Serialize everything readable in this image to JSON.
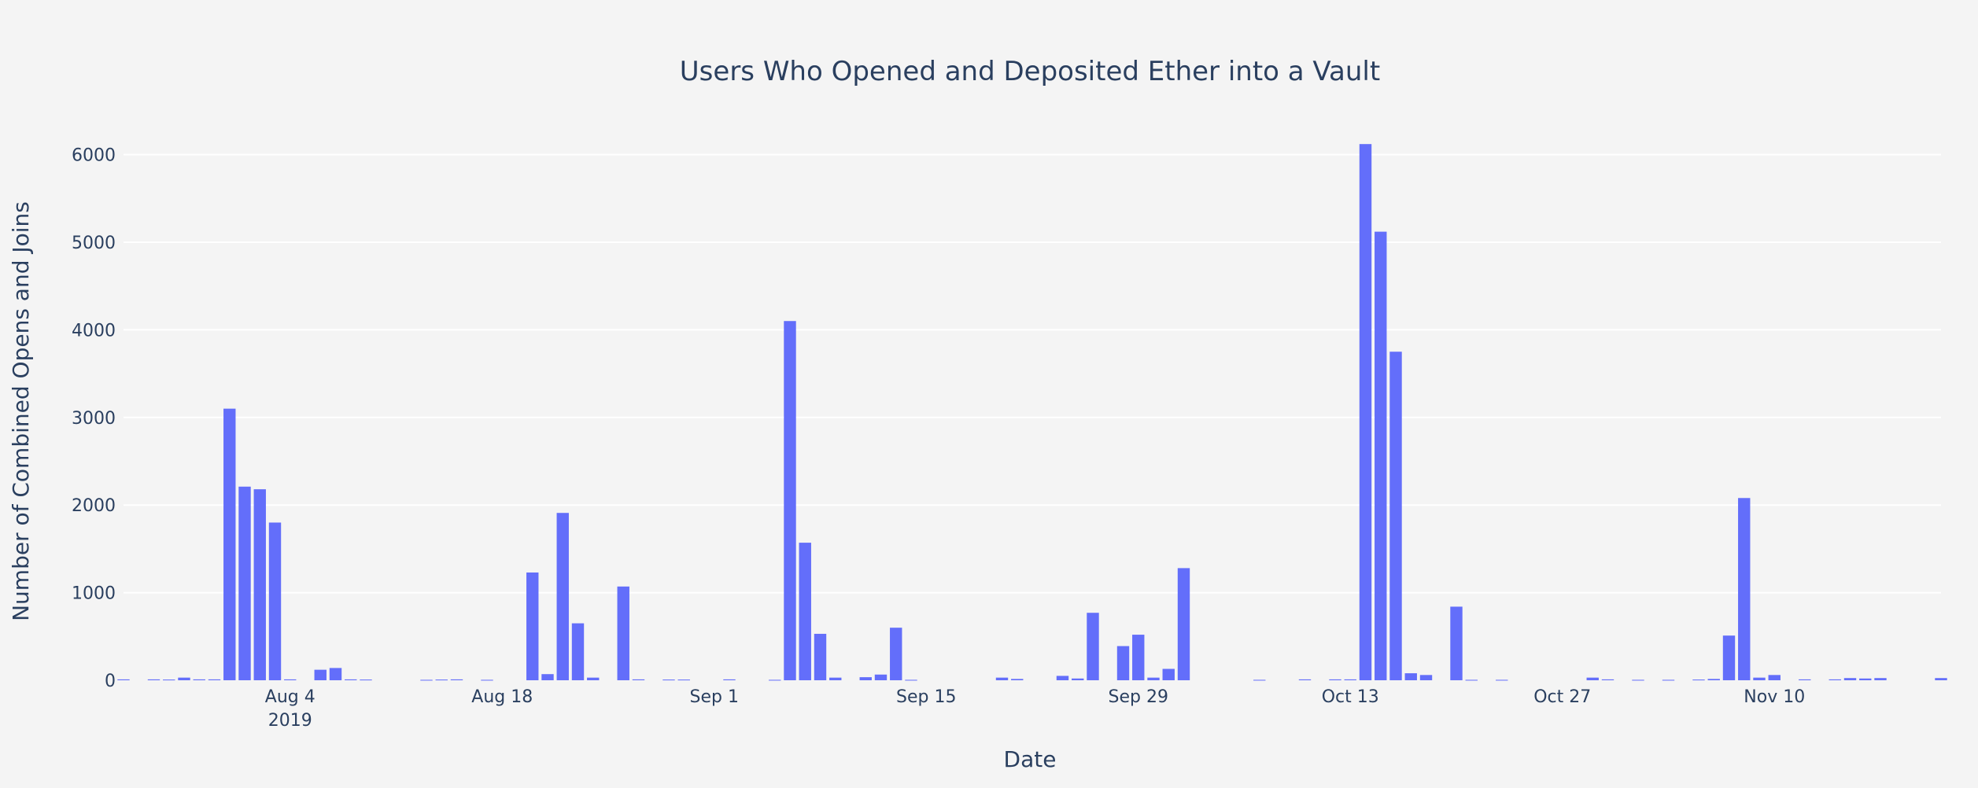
{
  "chart_data": {
    "type": "bar",
    "title": "Users Who Opened and Deposited Ether into a Vault",
    "xlabel": "Date",
    "ylabel": "Number of Combined Opens and Joins",
    "ylim": [
      0,
      6400
    ],
    "yticks": [
      0,
      1000,
      2000,
      3000,
      4000,
      5000,
      6000
    ],
    "xrange": [
      "2019-07-24",
      "2019-11-21"
    ],
    "xticks": [
      {
        "date": "2019-08-04",
        "label": "Aug 4",
        "sublabel": "2019"
      },
      {
        "date": "2019-08-18",
        "label": "Aug 18"
      },
      {
        "date": "2019-09-01",
        "label": "Sep 1"
      },
      {
        "date": "2019-09-15",
        "label": "Sep 15"
      },
      {
        "date": "2019-09-29",
        "label": "Sep 29"
      },
      {
        "date": "2019-10-13",
        "label": "Oct 13"
      },
      {
        "date": "2019-10-27",
        "label": "Oct 27"
      },
      {
        "date": "2019-11-10",
        "label": "Nov 10"
      }
    ],
    "grid": true,
    "bar_color": "#636efa",
    "x": [
      "2019-07-24",
      "2019-07-26",
      "2019-07-27",
      "2019-07-28",
      "2019-07-29",
      "2019-07-30",
      "2019-07-31",
      "2019-08-01",
      "2019-08-02",
      "2019-08-03",
      "2019-08-04",
      "2019-08-06",
      "2019-08-07",
      "2019-08-08",
      "2019-08-09",
      "2019-08-13",
      "2019-08-14",
      "2019-08-15",
      "2019-08-17",
      "2019-08-20",
      "2019-08-21",
      "2019-08-22",
      "2019-08-23",
      "2019-08-24",
      "2019-08-26",
      "2019-08-27",
      "2019-08-29",
      "2019-08-30",
      "2019-09-02",
      "2019-09-05",
      "2019-09-06",
      "2019-09-07",
      "2019-09-08",
      "2019-09-09",
      "2019-09-11",
      "2019-09-12",
      "2019-09-13",
      "2019-09-14",
      "2019-09-20",
      "2019-09-21",
      "2019-09-24",
      "2019-09-25",
      "2019-09-26",
      "2019-09-28",
      "2019-09-29",
      "2019-09-30",
      "2019-10-01",
      "2019-10-02",
      "2019-10-07",
      "2019-10-10",
      "2019-10-12",
      "2019-10-13",
      "2019-10-14",
      "2019-10-15",
      "2019-10-16",
      "2019-10-17",
      "2019-10-18",
      "2019-10-20",
      "2019-10-21",
      "2019-10-23",
      "2019-10-29",
      "2019-10-30",
      "2019-11-01",
      "2019-11-03",
      "2019-11-05",
      "2019-11-06",
      "2019-11-07",
      "2019-11-08",
      "2019-11-09",
      "2019-11-10",
      "2019-11-12",
      "2019-11-14",
      "2019-11-15",
      "2019-11-16",
      "2019-11-17",
      "2019-11-21"
    ],
    "values": [
      10,
      10,
      8,
      30,
      10,
      10,
      3100,
      2210,
      2180,
      1800,
      10,
      120,
      140,
      10,
      8,
      5,
      8,
      10,
      5,
      1230,
      70,
      1910,
      650,
      30,
      1070,
      10,
      8,
      8,
      10,
      5,
      4100,
      1570,
      530,
      30,
      35,
      65,
      600,
      5,
      30,
      15,
      50,
      20,
      770,
      390,
      520,
      30,
      130,
      1280,
      5,
      10,
      10,
      10,
      6120,
      5120,
      3750,
      80,
      60,
      840,
      5,
      5,
      30,
      10,
      5,
      5,
      8,
      15,
      510,
      2080,
      30,
      60,
      10,
      10,
      25,
      20,
      25,
      25
    ]
  }
}
